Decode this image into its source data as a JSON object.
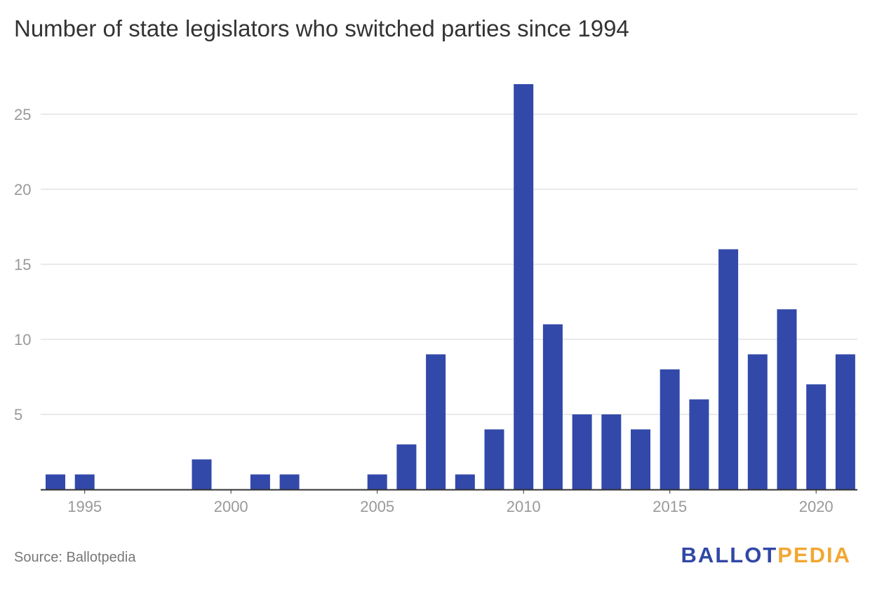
{
  "chart_data": {
    "type": "bar",
    "title": "Number of state legislators who switched parties since 1994",
    "xlabel": "",
    "ylabel": "",
    "x": [
      1994,
      1995,
      1996,
      1997,
      1998,
      1999,
      2000,
      2001,
      2002,
      2003,
      2004,
      2005,
      2006,
      2007,
      2008,
      2009,
      2010,
      2011,
      2012,
      2013,
      2014,
      2015,
      2016,
      2017,
      2018,
      2019,
      2020,
      2021
    ],
    "values": [
      1,
      1,
      0,
      0,
      0,
      2,
      0,
      1,
      1,
      0,
      0,
      1,
      3,
      9,
      1,
      4,
      27,
      11,
      5,
      5,
      4,
      8,
      6,
      16,
      9,
      12,
      7,
      9
    ],
    "ylim": [
      0,
      27
    ],
    "yticks": [
      5,
      10,
      15,
      20,
      25
    ],
    "xticks": [
      1995,
      2000,
      2005,
      2010,
      2015,
      2020
    ],
    "grid": true,
    "bar_color": "#3249a9",
    "grid_color": "#e2e2e2",
    "tick_color": "#999999",
    "axis_color": "#333333"
  },
  "footer": {
    "source": "Source: Ballotpedia",
    "logo_ballot": "BALLOT",
    "logo_pedia": "PEDIA",
    "logo_ballot_color": "#3048a6",
    "logo_pedia_color": "#f2a731"
  }
}
